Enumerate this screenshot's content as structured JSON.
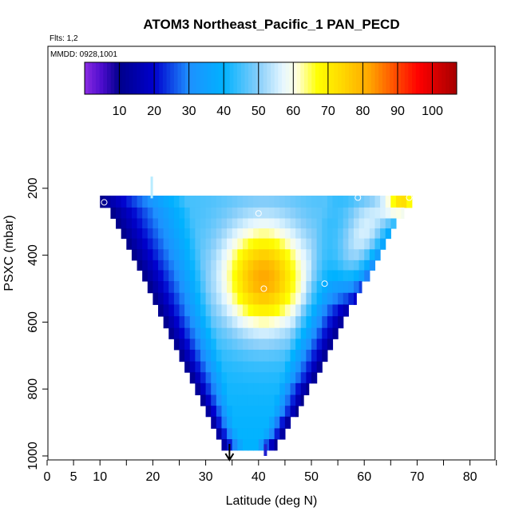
{
  "chart_data": {
    "type": "heatmap",
    "title": "ATOM3 Northeast_Pacific_1 PAN_PECD",
    "subtitle_flights": "Flts: 1,2",
    "subtitle_dates": "MMDD: 0928,1001",
    "xlabel": "Latitude (deg N)",
    "ylabel": "PSXC (mbar)",
    "xlim": [
      0,
      85
    ],
    "ylim": [
      1000,
      0
    ],
    "x_ticks": [
      0,
      5,
      10,
      20,
      30,
      40,
      50,
      60,
      70,
      80
    ],
    "x_minor_ticks": [
      15,
      25,
      35,
      45,
      55,
      65,
      75,
      85
    ],
    "y_ticks": [
      200,
      400,
      600,
      800,
      1000
    ],
    "colorbar": {
      "min": 0,
      "max": 107,
      "ticks": [
        10,
        20,
        30,
        40,
        50,
        60,
        70,
        80,
        90,
        100
      ],
      "stops": [
        {
          "v": 0,
          "color": "#8a2be2"
        },
        {
          "v": 5,
          "color": "#4b0ccc"
        },
        {
          "v": 10,
          "color": "#00008b"
        },
        {
          "v": 20,
          "color": "#0000cd"
        },
        {
          "v": 30,
          "color": "#1e90ff"
        },
        {
          "v": 40,
          "color": "#00b2ff"
        },
        {
          "v": 50,
          "color": "#87cefa"
        },
        {
          "v": 57,
          "color": "#e6f7ff"
        },
        {
          "v": 61,
          "color": "#ffffe0"
        },
        {
          "v": 67,
          "color": "#ffff00"
        },
        {
          "v": 75,
          "color": "#ffd200"
        },
        {
          "v": 82,
          "color": "#ffa500"
        },
        {
          "v": 90,
          "color": "#ff4500"
        },
        {
          "v": 96,
          "color": "#ff0000"
        },
        {
          "v": 107,
          "color": "#a50000"
        }
      ]
    },
    "field_model": {
      "pressure_levels": [
        240,
        275,
        305,
        335,
        365,
        400,
        430,
        460,
        495,
        530,
        565,
        600,
        635,
        665,
        700,
        735,
        765,
        800,
        835,
        865,
        900,
        935,
        965
      ],
      "left_edge_lat": [
        10,
        12,
        13,
        14,
        15,
        16,
        17,
        18,
        19,
        20,
        21,
        22,
        23,
        24,
        25,
        26,
        27,
        28,
        29,
        30,
        31,
        32,
        33
      ],
      "right_edge_lat": [
        69,
        67.5,
        66,
        65,
        64,
        63,
        62,
        61,
        59.5,
        58.5,
        57,
        56,
        55,
        54,
        53,
        52,
        51,
        49.5,
        48.5,
        47.5,
        46,
        45,
        43.5
      ],
      "cell_lat_width": 1.0,
      "low_edge_value": 8,
      "background": {
        "center_lat": 47,
        "lat_width": 12,
        "p0": 240,
        "p1": 965,
        "top_value": 45,
        "bottom_value": 40
      },
      "peaks": [
        {
          "lat": 41,
          "p": 470,
          "amp": 38,
          "lat_width": 8,
          "p_width": 160
        },
        {
          "lat": 68,
          "p": 240,
          "amp": 55,
          "lat_width": 4,
          "p_width": 70
        },
        {
          "lat": 62,
          "p": 320,
          "amp": 30,
          "lat_width": 5,
          "p_width": 120
        },
        {
          "lat": 58,
          "p": 430,
          "amp": 18,
          "lat_width": 4,
          "p_width": 120
        }
      ]
    },
    "flight_points": [
      {
        "lat": 10.8,
        "p": 242
      },
      {
        "lat": 40.0,
        "p": 275
      },
      {
        "lat": 58.8,
        "p": 228
      },
      {
        "lat": 68.5,
        "p": 228
      },
      {
        "lat": 41.0,
        "p": 500
      },
      {
        "lat": 52.5,
        "p": 485
      }
    ],
    "lat_marker": {
      "lat": 34.5
    },
    "light_strip": {
      "lat": 19.8,
      "p_from": 165,
      "p_to": 230
    },
    "dark_strip": {
      "lat": 41.3,
      "p_from": 965,
      "p_to": 1000
    }
  }
}
